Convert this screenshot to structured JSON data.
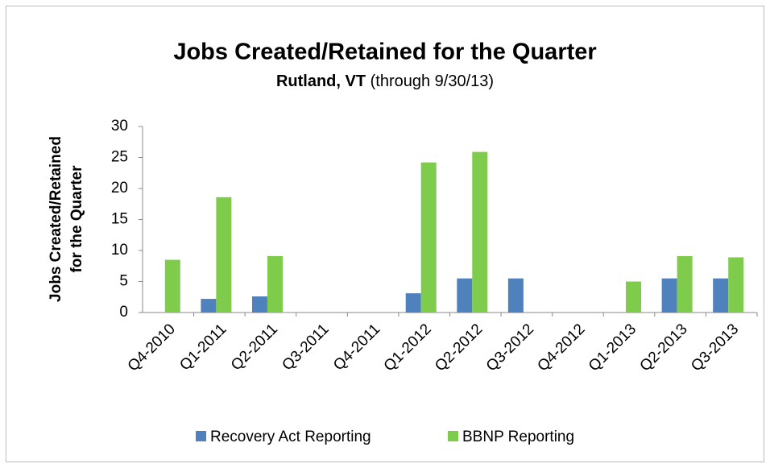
{
  "chart_data": {
    "type": "bar",
    "title": "Jobs Created/Retained for the Quarter",
    "subtitle": [
      "Rutland, VT",
      "(through 9/30/13)"
    ],
    "ylabel": [
      "Jobs Created/Retained",
      "for the Quarter"
    ],
    "categories": [
      "Q4-2010",
      "Q1-2011",
      "Q2-2011",
      "Q3-2011",
      "Q4-2011",
      "Q1-2012",
      "Q2-2012",
      "Q3-2012",
      "Q4-2012",
      "Q1-2013",
      "Q2-2013",
      "Q3-2013"
    ],
    "series": [
      {
        "name": "Recovery Act Reporting",
        "color": "#4f81bd",
        "values": [
          0,
          2.2,
          2.6,
          0,
          0,
          3.1,
          5.5,
          5.5,
          0,
          0,
          5.5,
          5.5
        ]
      },
      {
        "name": "BBNP Reporting",
        "color": "#7fcc4c",
        "values": [
          8.5,
          18.6,
          9.1,
          0,
          0,
          24.2,
          25.9,
          0,
          0,
          5.0,
          9.1,
          8.9
        ]
      }
    ],
    "ylim": [
      0,
      30
    ],
    "yticks": [
      0,
      5,
      10,
      15,
      20,
      25,
      30
    ],
    "grid": false,
    "legend": "bottom"
  }
}
